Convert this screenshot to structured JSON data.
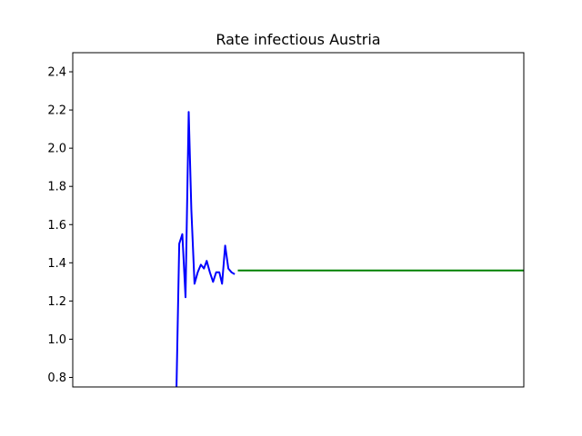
{
  "chart_data": {
    "type": "line",
    "title": "Rate infectious Austria",
    "xlabel": "",
    "ylabel": "",
    "x_ticks_visible": false,
    "ylim": [
      0.75,
      2.5
    ],
    "xlim": [
      0,
      100
    ],
    "y_ticks": [
      "0.8",
      "1.0",
      "1.2",
      "1.4",
      "1.6",
      "1.8",
      "2.0",
      "2.2",
      "2.4"
    ],
    "grid": false,
    "legend": "none",
    "series": [
      {
        "color": "#0000ff",
        "x": [
          23,
          23.6,
          24.3,
          25,
          25.7,
          26.3,
          27,
          27.7,
          28.4,
          29.1,
          29.7,
          30.4,
          31.1,
          31.8,
          32.5,
          33.1,
          33.8,
          34.5,
          35.2,
          35.9
        ],
        "y": [
          0.75,
          1.5,
          1.55,
          1.22,
          2.19,
          1.68,
          1.29,
          1.35,
          1.39,
          1.37,
          1.41,
          1.35,
          1.3,
          1.35,
          1.35,
          1.29,
          1.49,
          1.37,
          1.35,
          1.34
        ]
      },
      {
        "color": "#008000",
        "x": [
          36.6,
          100
        ],
        "y": [
          1.36,
          1.36
        ]
      }
    ]
  }
}
